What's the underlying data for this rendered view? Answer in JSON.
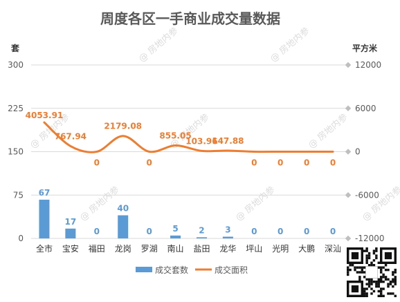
{
  "chart_data": {
    "type": "bar",
    "title": "周度各区一手商业成交量数据",
    "left_axis_unit": "套",
    "right_axis_unit": "平方米",
    "left_ylim": [
      0,
      300
    ],
    "left_ticks": [
      "0",
      "75",
      "150",
      "225",
      "300"
    ],
    "right_ylim": [
      -12000,
      12000
    ],
    "right_ticks": [
      "-12000",
      "-6000",
      "0",
      "6000",
      "12000"
    ],
    "categories": [
      "全市",
      "宝安",
      "福田",
      "龙岗",
      "罗湖",
      "南山",
      "盐田",
      "龙华",
      "坪山",
      "光明",
      "大鹏",
      "深汕"
    ],
    "series": [
      {
        "name": "成交套数",
        "type": "bar",
        "axis": "left",
        "values": [
          67,
          17,
          0,
          40,
          0,
          5,
          2,
          3,
          0,
          0,
          0,
          0
        ],
        "labels": [
          "67",
          "17",
          "0",
          "40",
          "0",
          "5",
          "2",
          "3",
          "0",
          "0",
          "0",
          "0"
        ],
        "color": "#5b9bd5"
      },
      {
        "name": "成交面积",
        "type": "line",
        "axis": "right",
        "values": [
          4053.91,
          767.94,
          0,
          2179.08,
          0,
          855.05,
          103.96,
          147.88,
          0,
          0,
          0,
          0
        ],
        "labels": [
          "4053.91",
          "767.94",
          "0",
          "2179.08",
          "0",
          "855.05",
          "103.96",
          "147.88",
          "0",
          "0",
          "0",
          "0"
        ],
        "color": "#ed7d31"
      }
    ],
    "grid": true,
    "legend": "bottom"
  },
  "watermark_text": "@ 房地内参",
  "qr_code": "qr-code-icon"
}
